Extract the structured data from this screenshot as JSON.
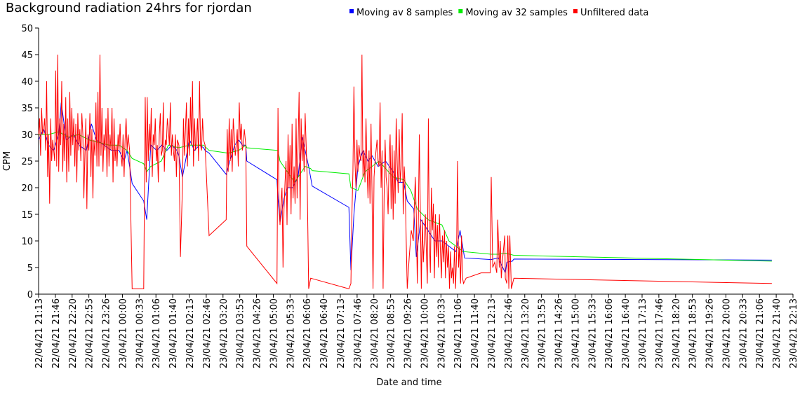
{
  "chart_data": {
    "type": "line",
    "title": "Background radiation 24hrs for rjordan",
    "x_label": "Date and time",
    "y_label": "CPM",
    "legend": "top",
    "xlim": [
      0,
      1500
    ],
    "ylim": [
      0,
      50
    ],
    "yticks": [
      0,
      5,
      10,
      15,
      20,
      25,
      30,
      35,
      40,
      45,
      50
    ],
    "xticks": [
      {
        "value": 0,
        "label": "22/04/21 21:13"
      },
      {
        "value": 33.33,
        "label": "22/04/21 21:46"
      },
      {
        "value": 66.67,
        "label": "22/04/21 22:20"
      },
      {
        "value": 100,
        "label": "22/04/21 22:53"
      },
      {
        "value": 133.33,
        "label": "22/04/21 23:26"
      },
      {
        "value": 166.67,
        "label": "23/04/21 00:00"
      },
      {
        "value": 200,
        "label": "23/04/21 00:33"
      },
      {
        "value": 233.33,
        "label": "23/04/21 01:06"
      },
      {
        "value": 266.67,
        "label": "23/04/21 01:40"
      },
      {
        "value": 300,
        "label": "23/04/21 02:13"
      },
      {
        "value": 333.33,
        "label": "23/04/21 02:46"
      },
      {
        "value": 366.67,
        "label": "23/04/21 03:20"
      },
      {
        "value": 400,
        "label": "23/04/21 03:53"
      },
      {
        "value": 433.33,
        "label": "23/04/21 04:26"
      },
      {
        "value": 466.67,
        "label": "23/04/21 05:00"
      },
      {
        "value": 500,
        "label": "23/04/21 05:33"
      },
      {
        "value": 533.33,
        "label": "23/04/21 06:06"
      },
      {
        "value": 566.67,
        "label": "23/04/21 06:40"
      },
      {
        "value": 600,
        "label": "23/04/21 07:13"
      },
      {
        "value": 633.33,
        "label": "23/04/21 07:46"
      },
      {
        "value": 666.67,
        "label": "23/04/21 08:20"
      },
      {
        "value": 700,
        "label": "23/04/21 08:53"
      },
      {
        "value": 733.33,
        "label": "23/04/21 09:26"
      },
      {
        "value": 766.67,
        "label": "23/04/21 10:00"
      },
      {
        "value": 800,
        "label": "23/04/21 10:33"
      },
      {
        "value": 833.33,
        "label": "23/04/21 11:06"
      },
      {
        "value": 866.67,
        "label": "23/04/21 11:40"
      },
      {
        "value": 900,
        "label": "23/04/21 12:13"
      },
      {
        "value": 933.33,
        "label": "23/04/21 12:46"
      },
      {
        "value": 966.67,
        "label": "23/04/21 13:20"
      },
      {
        "value": 1000,
        "label": "23/04/21 13:53"
      },
      {
        "value": 1033.33,
        "label": "23/04/21 14:26"
      },
      {
        "value": 1066.67,
        "label": "23/04/21 15:00"
      },
      {
        "value": 1100,
        "label": "23/04/21 15:33"
      },
      {
        "value": 1133.33,
        "label": "23/04/21 16:06"
      },
      {
        "value": 1166.67,
        "label": "23/04/21 16:40"
      },
      {
        "value": 1200,
        "label": "23/04/21 17:13"
      },
      {
        "value": 1233.33,
        "label": "23/04/21 17:46"
      },
      {
        "value": 1266.67,
        "label": "23/04/21 18:20"
      },
      {
        "value": 1300,
        "label": "23/04/21 18:53"
      },
      {
        "value": 1333.33,
        "label": "23/04/21 19:26"
      },
      {
        "value": 1366.67,
        "label": "23/04/21 20:00"
      },
      {
        "value": 1400,
        "label": "23/04/21 20:33"
      },
      {
        "value": 1433.33,
        "label": "23/04/21 21:06"
      },
      {
        "value": 1466.67,
        "label": "23/04/21 21:40"
      },
      {
        "value": 1500,
        "label": "23/04/21 22:13"
      }
    ],
    "series": [
      {
        "name": "Moving av 8 samples",
        "color": "#0000ff",
        "x": [
          0,
          10,
          20,
          30,
          40,
          45,
          55,
          70,
          80,
          95,
          105,
          115,
          130,
          145,
          160,
          170,
          176,
          181,
          186,
          209,
          215,
          223,
          235,
          245,
          255,
          265,
          275,
          279,
          286,
          292,
          300,
          310,
          320,
          328,
          331,
          339,
          373,
          380,
          390,
          398,
          405,
          412,
          414,
          474,
          476,
          480,
          488,
          495,
          505,
          516,
          524,
          530,
          537,
          544,
          617,
          621,
          627,
          635,
          645,
          655,
          663,
          675,
          690,
          705,
          715,
          726,
          733,
          746,
          751,
          760,
          774,
          788,
          802,
          816,
          830,
          838,
          847,
          900,
          914,
          928,
          931,
          942,
          945,
          1458
        ],
        "values": [
          29,
          31,
          28,
          27,
          30,
          36,
          29,
          30,
          28,
          27,
          32,
          29,
          28,
          27,
          27,
          25,
          27,
          24,
          20.8,
          17.5,
          14,
          28,
          27,
          28,
          27,
          28,
          27,
          26,
          22,
          25,
          29,
          27,
          28,
          27.5,
          27,
          26.5,
          22.5,
          25,
          28,
          29,
          28,
          28,
          25,
          21.5,
          18,
          13.5,
          18,
          20,
          20,
          22,
          29.5,
          27,
          24,
          20.3,
          16.3,
          4.5,
          15,
          24,
          27,
          25,
          26,
          24,
          25,
          23,
          21,
          21,
          17.5,
          16,
          7,
          14,
          12,
          10,
          10,
          9,
          8,
          12,
          6.8,
          6.5,
          6.8,
          4,
          6,
          6.2,
          6.6,
          6.4
        ]
      },
      {
        "name": "Moving av 32 samples",
        "color": "#00ee00",
        "x": [
          0,
          20,
          40,
          60,
          80,
          100,
          120,
          140,
          160,
          176,
          186,
          209,
          215,
          223,
          244,
          258,
          279,
          300,
          328,
          339,
          377,
          398,
          412,
          414,
          476,
          480,
          509,
          530,
          541,
          544,
          617,
          621,
          635,
          649,
          677,
          705,
          726,
          740,
          753,
          774,
          788,
          802,
          816,
          844,
          900,
          914,
          928,
          945,
          1458
        ],
        "values": [
          30,
          30,
          30.5,
          29.5,
          30,
          29,
          28.5,
          28,
          28,
          27,
          25.5,
          24.5,
          23,
          24,
          25,
          28,
          27.5,
          28,
          28,
          27,
          26.5,
          27,
          28,
          27.5,
          27,
          25,
          21,
          24,
          23.6,
          23.2,
          22.6,
          20,
          19.5,
          23,
          25,
          22,
          21.5,
          19.5,
          16,
          14,
          13.5,
          13,
          10,
          8,
          7.5,
          7.5,
          7.7,
          7.3,
          6.2
        ]
      },
      {
        "name": "Unfiltered data",
        "color": "#ff0000",
        "x": [
          0,
          2,
          4,
          6,
          8,
          10,
          12,
          14,
          16,
          18,
          20,
          22,
          24,
          26,
          28,
          30,
          32,
          34,
          36,
          38,
          40,
          42,
          44,
          46,
          48,
          50,
          52,
          54,
          56,
          58,
          60,
          62,
          64,
          66,
          68,
          70,
          72,
          74,
          76,
          78,
          80,
          82,
          84,
          86,
          88,
          90,
          92,
          94,
          96,
          98,
          100,
          102,
          104,
          106,
          108,
          110,
          112,
          114,
          116,
          118,
          120,
          122,
          124,
          126,
          128,
          130,
          132,
          134,
          136,
          138,
          140,
          142,
          144,
          146,
          148,
          150,
          152,
          154,
          156,
          158,
          160,
          162,
          164,
          166,
          168,
          170,
          172,
          174,
          176,
          178,
          181,
          186,
          209,
          212,
          214,
          216,
          218,
          220,
          222,
          224,
          226,
          228,
          230,
          232,
          234,
          236,
          238,
          240,
          242,
          244,
          246,
          248,
          250,
          252,
          254,
          256,
          258,
          260,
          262,
          264,
          266,
          268,
          270,
          272,
          274,
          276,
          279,
          282,
          286,
          288,
          290,
          292,
          294,
          296,
          298,
          300,
          302,
          304,
          306,
          308,
          310,
          312,
          314,
          316,
          318,
          320,
          322,
          324,
          326,
          328,
          331,
          339,
          373,
          375,
          377,
          379,
          381,
          383,
          385,
          387,
          389,
          391,
          393,
          395,
          397,
          399,
          401,
          403,
          405,
          407,
          409,
          412,
          414,
          474,
          476,
          478,
          480,
          482,
          484,
          486,
          488,
          490,
          492,
          494,
          496,
          498,
          500,
          502,
          504,
          506,
          508,
          510,
          512,
          514,
          516,
          518,
          520,
          522,
          524,
          526,
          528,
          530,
          532,
          534,
          537,
          541,
          617,
          621,
          623,
          625,
          627,
          629,
          631,
          633,
          635,
          637,
          639,
          641,
          643,
          645,
          647,
          649,
          651,
          653,
          655,
          657,
          659,
          661,
          663,
          665,
          667,
          669,
          671,
          673,
          675,
          677,
          679,
          681,
          683,
          685,
          687,
          689,
          691,
          693,
          695,
          697,
          699,
          701,
          703,
          705,
          707,
          709,
          711,
          713,
          715,
          717,
          719,
          721,
          723,
          725,
          727,
          729,
          731,
          733,
          737,
          741,
          745,
          749,
          751,
          753,
          755,
          757,
          759,
          761,
          763,
          765,
          767,
          769,
          771,
          773,
          775,
          777,
          779,
          781,
          783,
          785,
          787,
          789,
          791,
          793,
          795,
          797,
          799,
          801,
          803,
          805,
          807,
          809,
          811,
          813,
          815,
          817,
          819,
          821,
          823,
          825,
          827,
          829,
          831,
          833,
          835,
          837,
          839,
          841,
          843,
          845,
          850,
          880,
          898,
          900,
          903,
          907,
          911,
          913,
          916,
          918,
          920,
          923,
          927,
          928,
          931,
          933,
          935,
          937,
          940,
          945,
          1458
        ],
        "values": [
          30,
          33,
          26,
          35,
          30,
          31,
          33,
          27,
          40,
          22,
          30,
          17,
          33,
          25,
          29,
          27,
          25,
          42,
          24,
          45,
          23,
          33,
          28,
          40,
          23,
          32,
          25,
          37,
          21,
          33,
          23,
          38,
          26,
          35,
          28,
          33,
          24,
          32,
          21,
          34,
          27,
          31,
          25,
          34,
          30,
          18,
          26,
          33,
          16,
          30,
          27,
          34,
          22,
          31,
          18,
          29,
          26,
          36,
          24,
          38,
          24,
          45,
          26,
          35,
          23,
          30,
          27,
          33,
          22,
          35,
          24,
          30,
          27,
          35,
          21,
          33,
          25,
          28,
          24,
          30,
          27,
          32,
          26,
          24,
          30,
          22,
          29,
          33,
          27,
          30,
          27,
          1,
          1,
          37,
          21,
          37,
          25,
          32,
          27,
          35,
          22,
          30,
          28,
          33,
          25,
          28,
          21,
          30,
          34,
          26,
          27,
          36,
          23,
          29,
          28,
          33,
          31,
          28,
          36,
          26,
          30,
          27,
          25,
          30,
          22,
          29,
          28,
          7,
          20,
          33,
          26,
          31,
          36,
          24,
          33,
          26,
          37,
          28,
          40,
          24,
          33,
          27,
          29,
          33,
          25,
          40,
          28,
          27,
          33,
          29,
          28,
          11,
          14,
          31,
          23,
          33,
          25,
          31,
          23,
          33,
          30,
          26,
          28,
          31,
          24,
          36,
          29,
          32,
          27,
          28,
          31,
          28,
          9,
          2,
          35,
          18,
          13,
          17,
          20,
          5,
          16,
          21,
          25,
          13,
          30,
          20,
          28,
          15,
          32,
          18,
          24,
          17,
          33,
          18,
          28,
          38,
          14,
          33,
          25,
          30,
          23,
          34,
          28,
          22,
          1,
          3,
          1,
          2,
          15,
          23,
          39,
          25,
          20,
          29,
          23,
          28,
          26,
          25,
          45,
          22,
          27,
          21,
          33,
          24,
          18,
          27,
          17,
          32,
          19,
          1,
          22,
          25,
          27,
          29,
          25,
          24,
          36,
          20,
          27,
          1,
          18,
          29,
          22,
          20,
          15,
          25,
          30,
          16,
          28,
          14,
          27,
          17,
          33,
          25,
          19,
          31,
          21,
          24,
          34,
          15,
          24,
          20,
          10,
          1,
          7,
          12,
          10,
          22,
          15,
          2,
          13,
          30,
          16,
          1,
          14,
          6,
          10,
          15,
          8,
          2,
          33,
          10,
          4,
          20,
          12,
          17,
          3,
          15,
          7,
          13,
          5,
          15,
          8,
          3,
          11,
          6,
          12,
          3,
          10,
          5,
          9,
          1,
          8,
          3,
          5,
          2,
          9,
          1,
          7,
          25,
          5,
          9,
          2,
          11,
          3,
          2,
          3,
          4,
          4,
          22,
          5,
          6,
          4,
          14,
          5,
          10,
          3,
          7,
          11,
          3,
          2,
          11,
          1,
          11,
          1,
          3,
          2
        ]
      }
    ]
  }
}
